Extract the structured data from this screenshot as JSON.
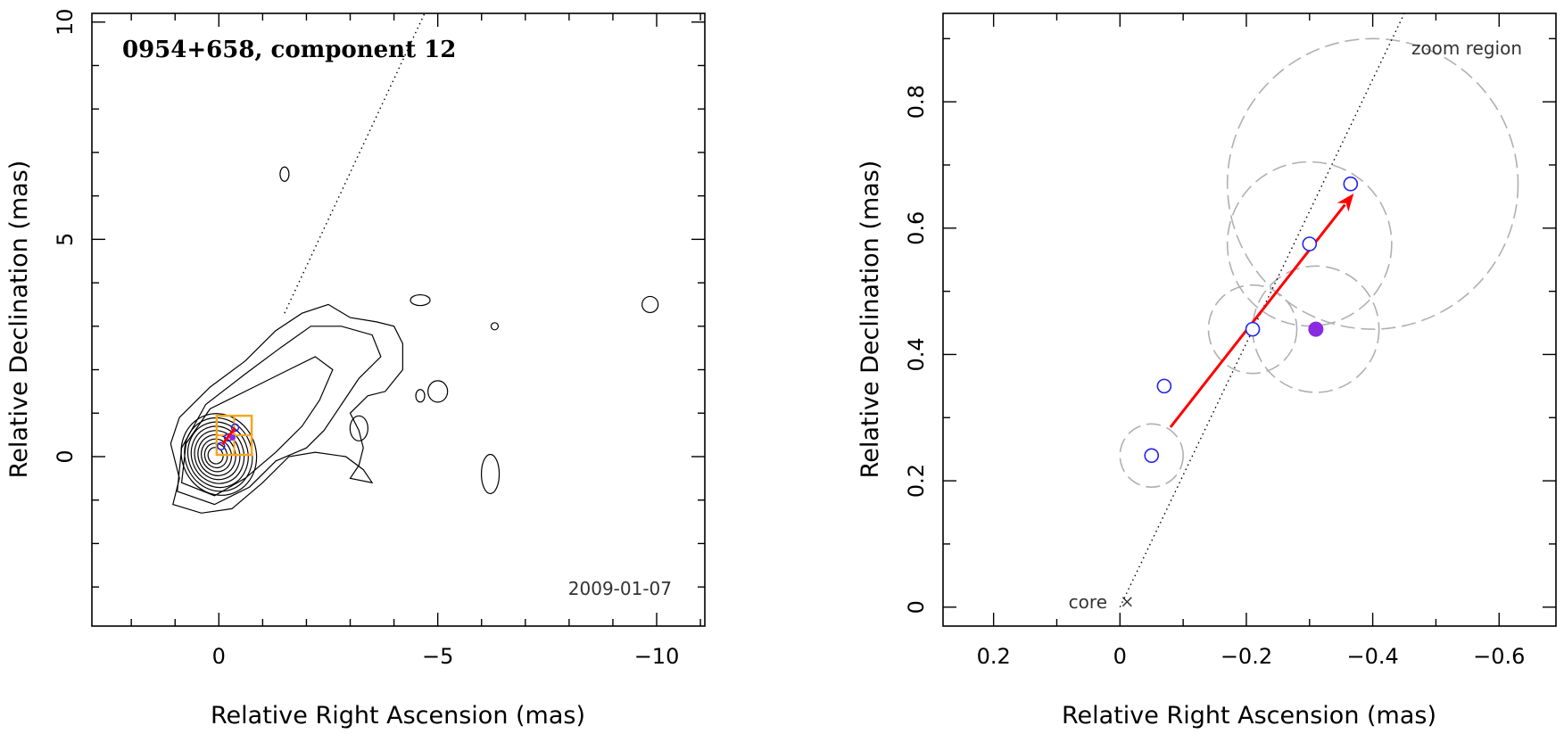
{
  "chart_data": [
    {
      "type": "scatter",
      "panel": "left",
      "title": "0954+658, component 12",
      "date_label": "2009-01-07",
      "xlabel": "Relative Right Ascension (mas)",
      "ylabel": "Relative Declination (mas)",
      "xlim": [
        2.9,
        -11.1
      ],
      "ylim": [
        -3.9,
        10.2
      ],
      "xticks": [
        0,
        -5,
        -10
      ],
      "xtick_labels": [
        "0",
        "−5",
        "−10"
      ],
      "yticks": [
        0,
        5,
        10
      ],
      "ytick_labels": [
        "0",
        "5",
        "10"
      ],
      "contour_levels": 12,
      "jet_axis": {
        "from": [
          0,
          0
        ],
        "to": [
          -4.7,
          10.2
        ]
      },
      "zoom_box": {
        "x": [
          0.05,
          -0.75
        ],
        "y": [
          0.04,
          0.94
        ]
      },
      "features": [
        {
          "x": -0.21,
          "y": 0.44
        },
        {
          "x": -0.37,
          "y": 0.67
        },
        {
          "x": -0.05,
          "y": 0.24
        }
      ],
      "colors": {
        "contour": "#000000",
        "zoom_box": "#f5a623",
        "arrow": "#ff0000",
        "feature": "#2222ee",
        "highlight": "#8a2be2"
      }
    },
    {
      "type": "scatter",
      "panel": "right",
      "title": "zoom region",
      "xlabel": "Relative Right Ascension (mas)",
      "ylabel": "Relative Declination (mas)",
      "xlim": [
        0.28,
        -0.69
      ],
      "ylim": [
        -0.03,
        0.94
      ],
      "xticks": [
        0.2,
        0,
        -0.2,
        -0.4,
        -0.6
      ],
      "xtick_labels": [
        "0.2",
        "0",
        "−0.2",
        "−0.4",
        "−0.6"
      ],
      "yticks": [
        0,
        0.2,
        0.4,
        0.6,
        0.8
      ],
      "ytick_labels": [
        "0",
        "0.2",
        "0.4",
        "0.6",
        "0.8"
      ],
      "core_label": "core",
      "core": {
        "x": 0,
        "y": 0
      },
      "series": [
        {
          "name": "component positions",
          "x": [
            -0.05,
            -0.07,
            -0.21,
            -0.3,
            -0.365
          ],
          "y": [
            0.24,
            0.35,
            0.44,
            0.575,
            0.67
          ]
        },
        {
          "name": "mean position",
          "x": [
            -0.31
          ],
          "y": [
            0.44
          ]
        }
      ],
      "error_circles": [
        {
          "x": -0.05,
          "y": 0.24,
          "r": 0.05
        },
        {
          "x": -0.21,
          "y": 0.44,
          "r": 0.07
        },
        {
          "x": -0.31,
          "y": 0.44,
          "r": 0.1
        },
        {
          "x": -0.3,
          "y": 0.575,
          "r": 0.13
        },
        {
          "x": -0.4,
          "y": 0.67,
          "r": 0.23
        }
      ],
      "arrow": {
        "from": [
          -0.08,
          0.285
        ],
        "to": [
          -0.37,
          0.655
        ]
      },
      "jet_axis": {
        "from": [
          0,
          0
        ],
        "to": [
          -0.45,
          0.94
        ]
      },
      "colors": {
        "marker": "#2222ee",
        "mean": "#8a2be2",
        "arrow": "#ff0000",
        "circle": "#b0b0b0"
      }
    }
  ]
}
